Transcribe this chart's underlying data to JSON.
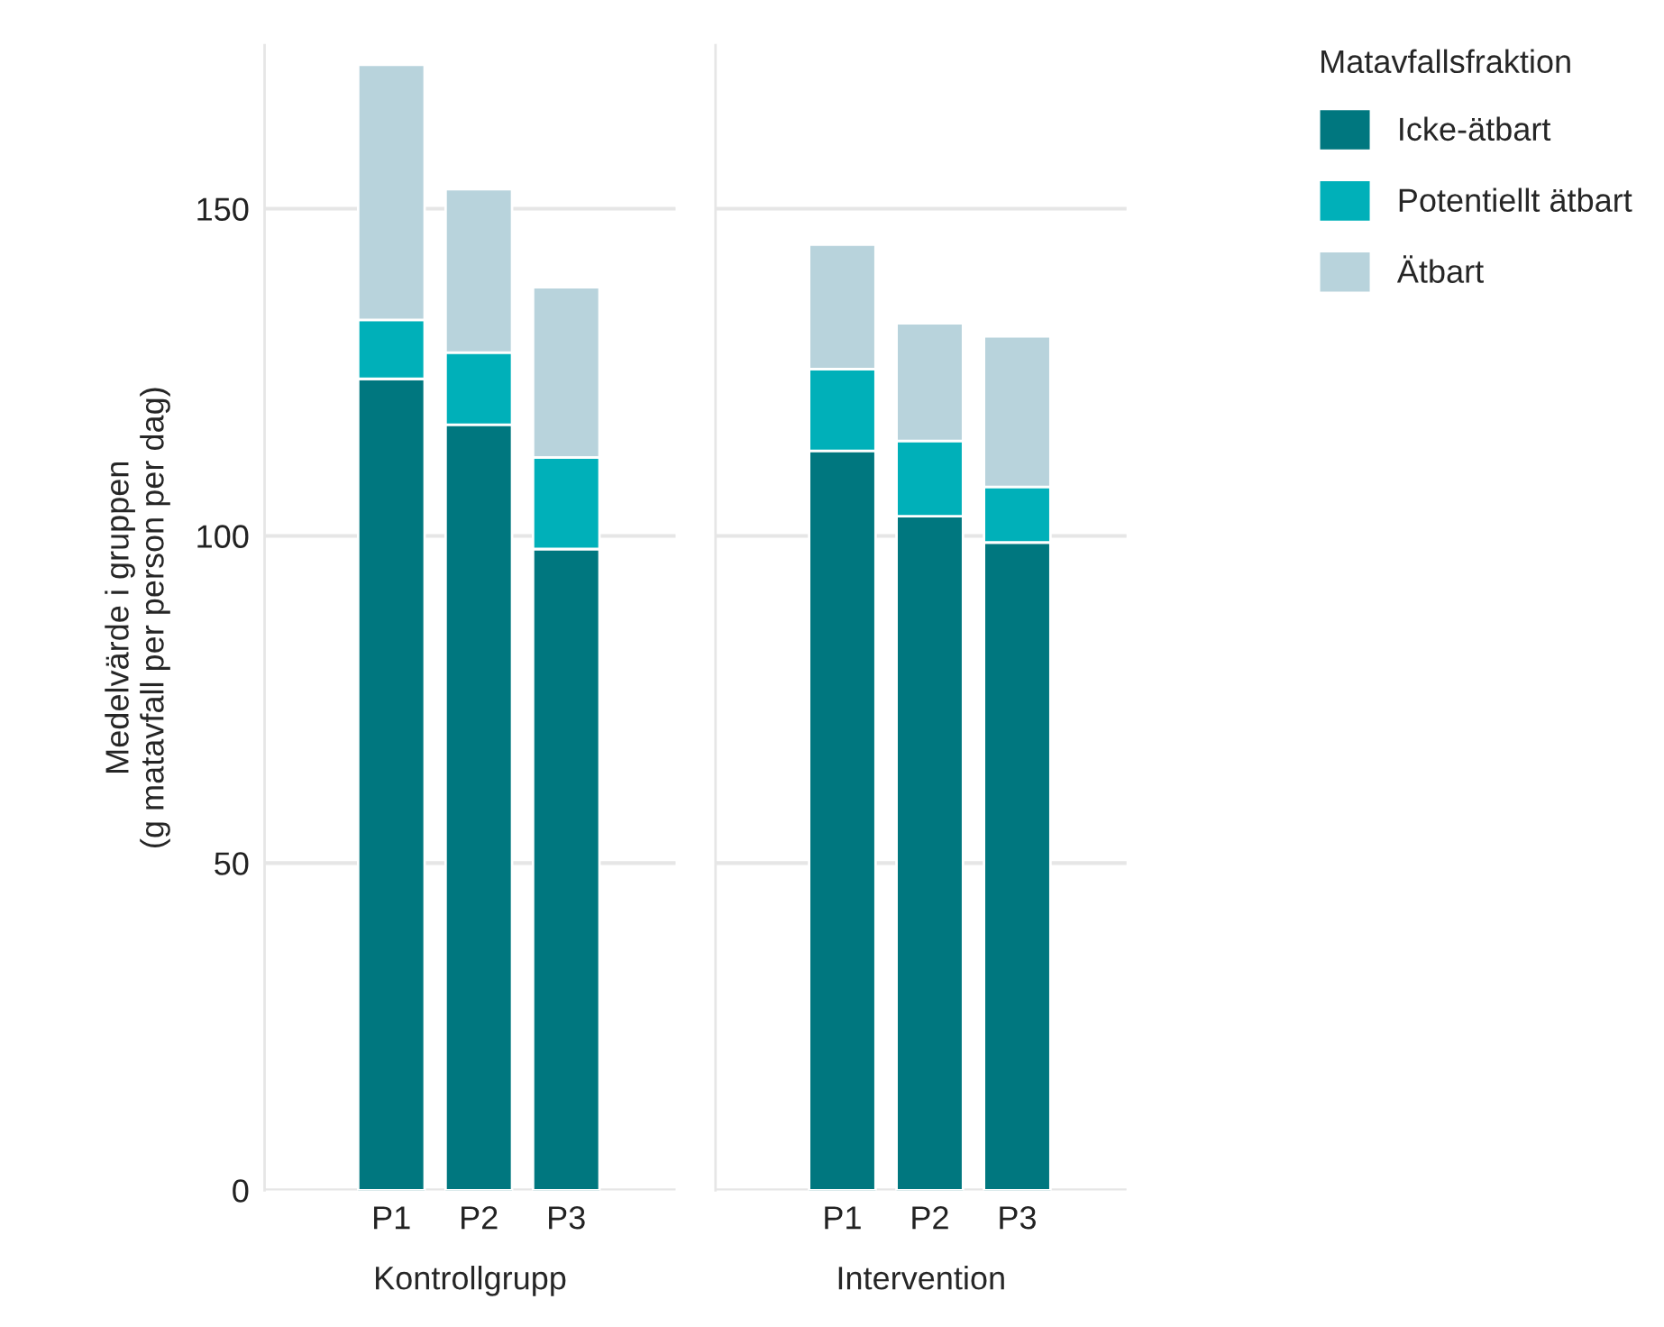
{
  "chart_data": [
    {
      "type": "bar",
      "stacked": true,
      "xlabel": "Kontrollgrupp",
      "ylabel": "Medelvärde i gruppen\n(g matavfall per person per dag)",
      "categories": [
        "P1",
        "P2",
        "P3"
      ],
      "ylim": [
        0,
        175
      ],
      "yticks": [
        0,
        50,
        100,
        150
      ],
      "grid": "y",
      "legend": "right",
      "legend_title": "Matavfallsfraktion",
      "series": [
        {
          "name": "Icke-ätbart",
          "color": "#00777f",
          "values": [
            124,
            117,
            98
          ]
        },
        {
          "name": "Potentiellt ätbart",
          "color": "#00b0b9",
          "values": [
            9,
            11,
            14
          ]
        },
        {
          "name": "Ätbart",
          "color": "#b8d3dc",
          "values": [
            39,
            25,
            26
          ]
        }
      ]
    },
    {
      "type": "bar",
      "stacked": true,
      "xlabel": "Intervention",
      "categories": [
        "P1",
        "P2",
        "P3"
      ],
      "ylim": [
        0,
        175
      ],
      "yticks": [
        0,
        50,
        100,
        150
      ],
      "grid": "y",
      "tick_labels": "x",
      "series": [
        {
          "color": "#00777f",
          "values": [
            113,
            103,
            99
          ]
        },
        {
          "color": "#00b0b9",
          "values": [
            12.5,
            11.5,
            8.5
          ]
        },
        {
          "color": "#b8d3dc",
          "values": [
            19,
            18,
            23
          ]
        }
      ]
    }
  ]
}
